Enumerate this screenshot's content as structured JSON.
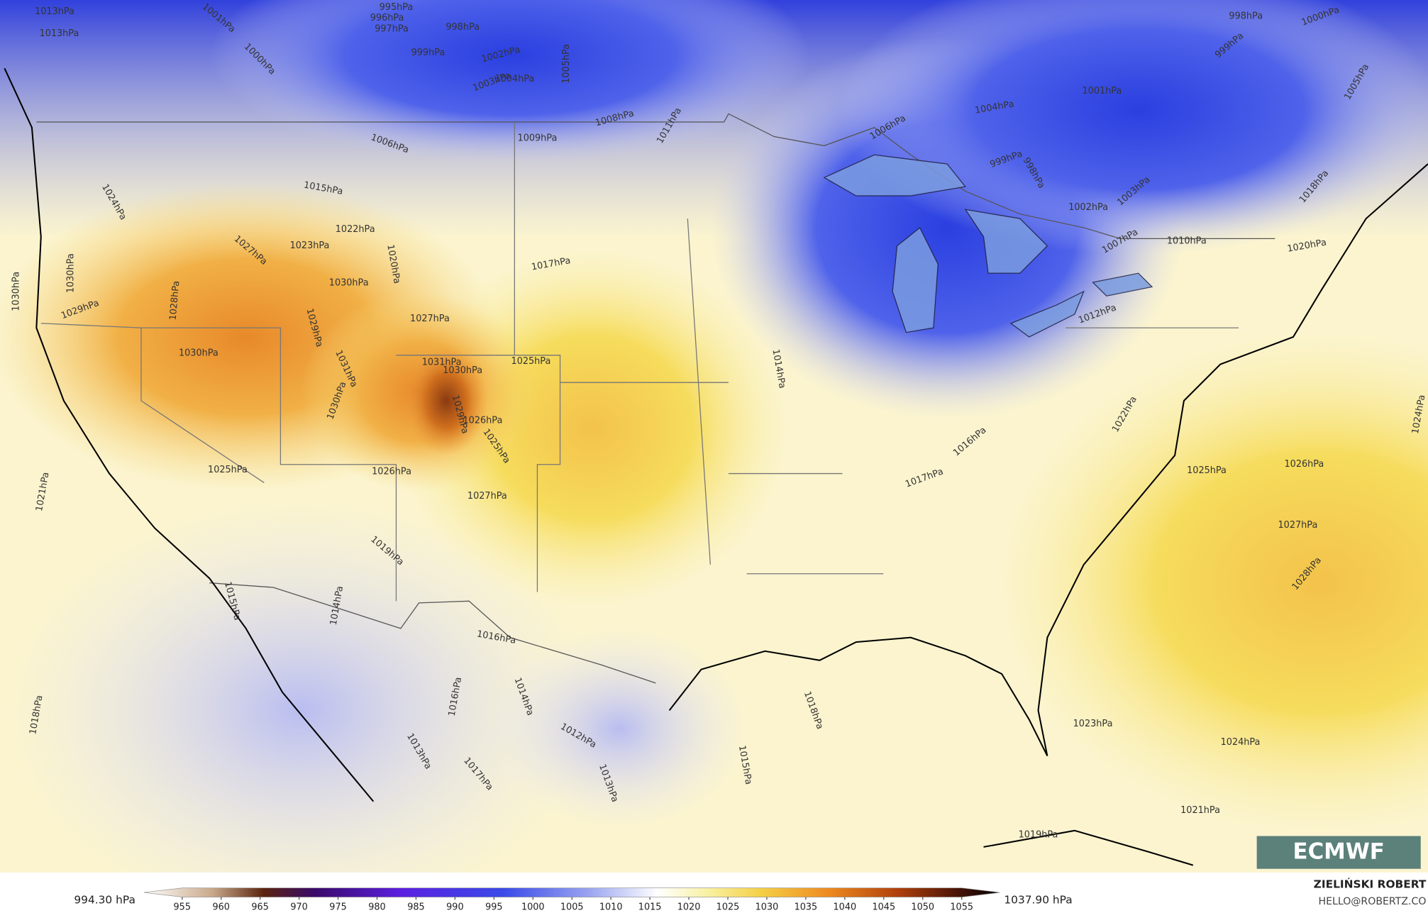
{
  "map": {
    "isobar_labels": [
      "1013hPa",
      "1013hPa",
      "1001hPa",
      "995hPa",
      "996hPa",
      "997hPa",
      "998hPa",
      "999hPa",
      "1002hPa",
      "1003hPa",
      "1004hPa",
      "1005hPa",
      "1000hPa",
      "1006hPa",
      "1008hPa",
      "1009hPa",
      "1011hPa",
      "1015hPa",
      "1024hPa",
      "1027hPa",
      "1023hPa",
      "1022hPa",
      "1020hPa",
      "1030hPa",
      "1030hPa",
      "1030hPa",
      "1028hPa",
      "1029hPa",
      "1027hPa",
      "1017hPa",
      "1030hPa",
      "1029hPa",
      "1031hPa",
      "1030hPa",
      "1031hPa",
      "1030hPa",
      "1025hPa",
      "1029hPa",
      "1026hPa",
      "1025hPa",
      "1026hPa",
      "1025hPa",
      "1027hPa",
      "1021hPa",
      "1019hPa",
      "1015hPa",
      "1014hPa",
      "1016hPa",
      "1016hPa",
      "1014hPa",
      "1012hPa",
      "1013hPa",
      "1017hPa",
      "1013hPa",
      "1018hPa",
      "1014hPa",
      "1015hPa",
      "1018hPa",
      "1006hPa",
      "1004hPa",
      "1001hPa",
      "999hPa",
      "998hPa",
      "1002hPa",
      "1003hPa",
      "1007hPa",
      "1010hPa",
      "1012hPa",
      "1016hPa",
      "1017hPa",
      "1022hPa",
      "1025hPa",
      "1026hPa",
      "1027hPa",
      "1028hPa",
      "1023hPa",
      "1024hPa",
      "1021hPa",
      "1019hPa",
      "1020hPa",
      "1018hPa",
      "1024hPa",
      "998hPa",
      "1000hPa",
      "999hPa",
      "1005hPa"
    ],
    "logo": "ECMWF"
  },
  "colorbar": {
    "min_label": "994.30 hPa",
    "max_label": "1037.90 hPa",
    "ticks": [
      955,
      960,
      965,
      970,
      975,
      980,
      985,
      990,
      995,
      1000,
      1005,
      1010,
      1015,
      1020,
      1025,
      1030,
      1035,
      1040,
      1045,
      1050,
      1055
    ]
  },
  "credits": {
    "author": "ZIELIŃSKI ROBERT",
    "contact": "HELLO@ROBERTZ.CO"
  }
}
